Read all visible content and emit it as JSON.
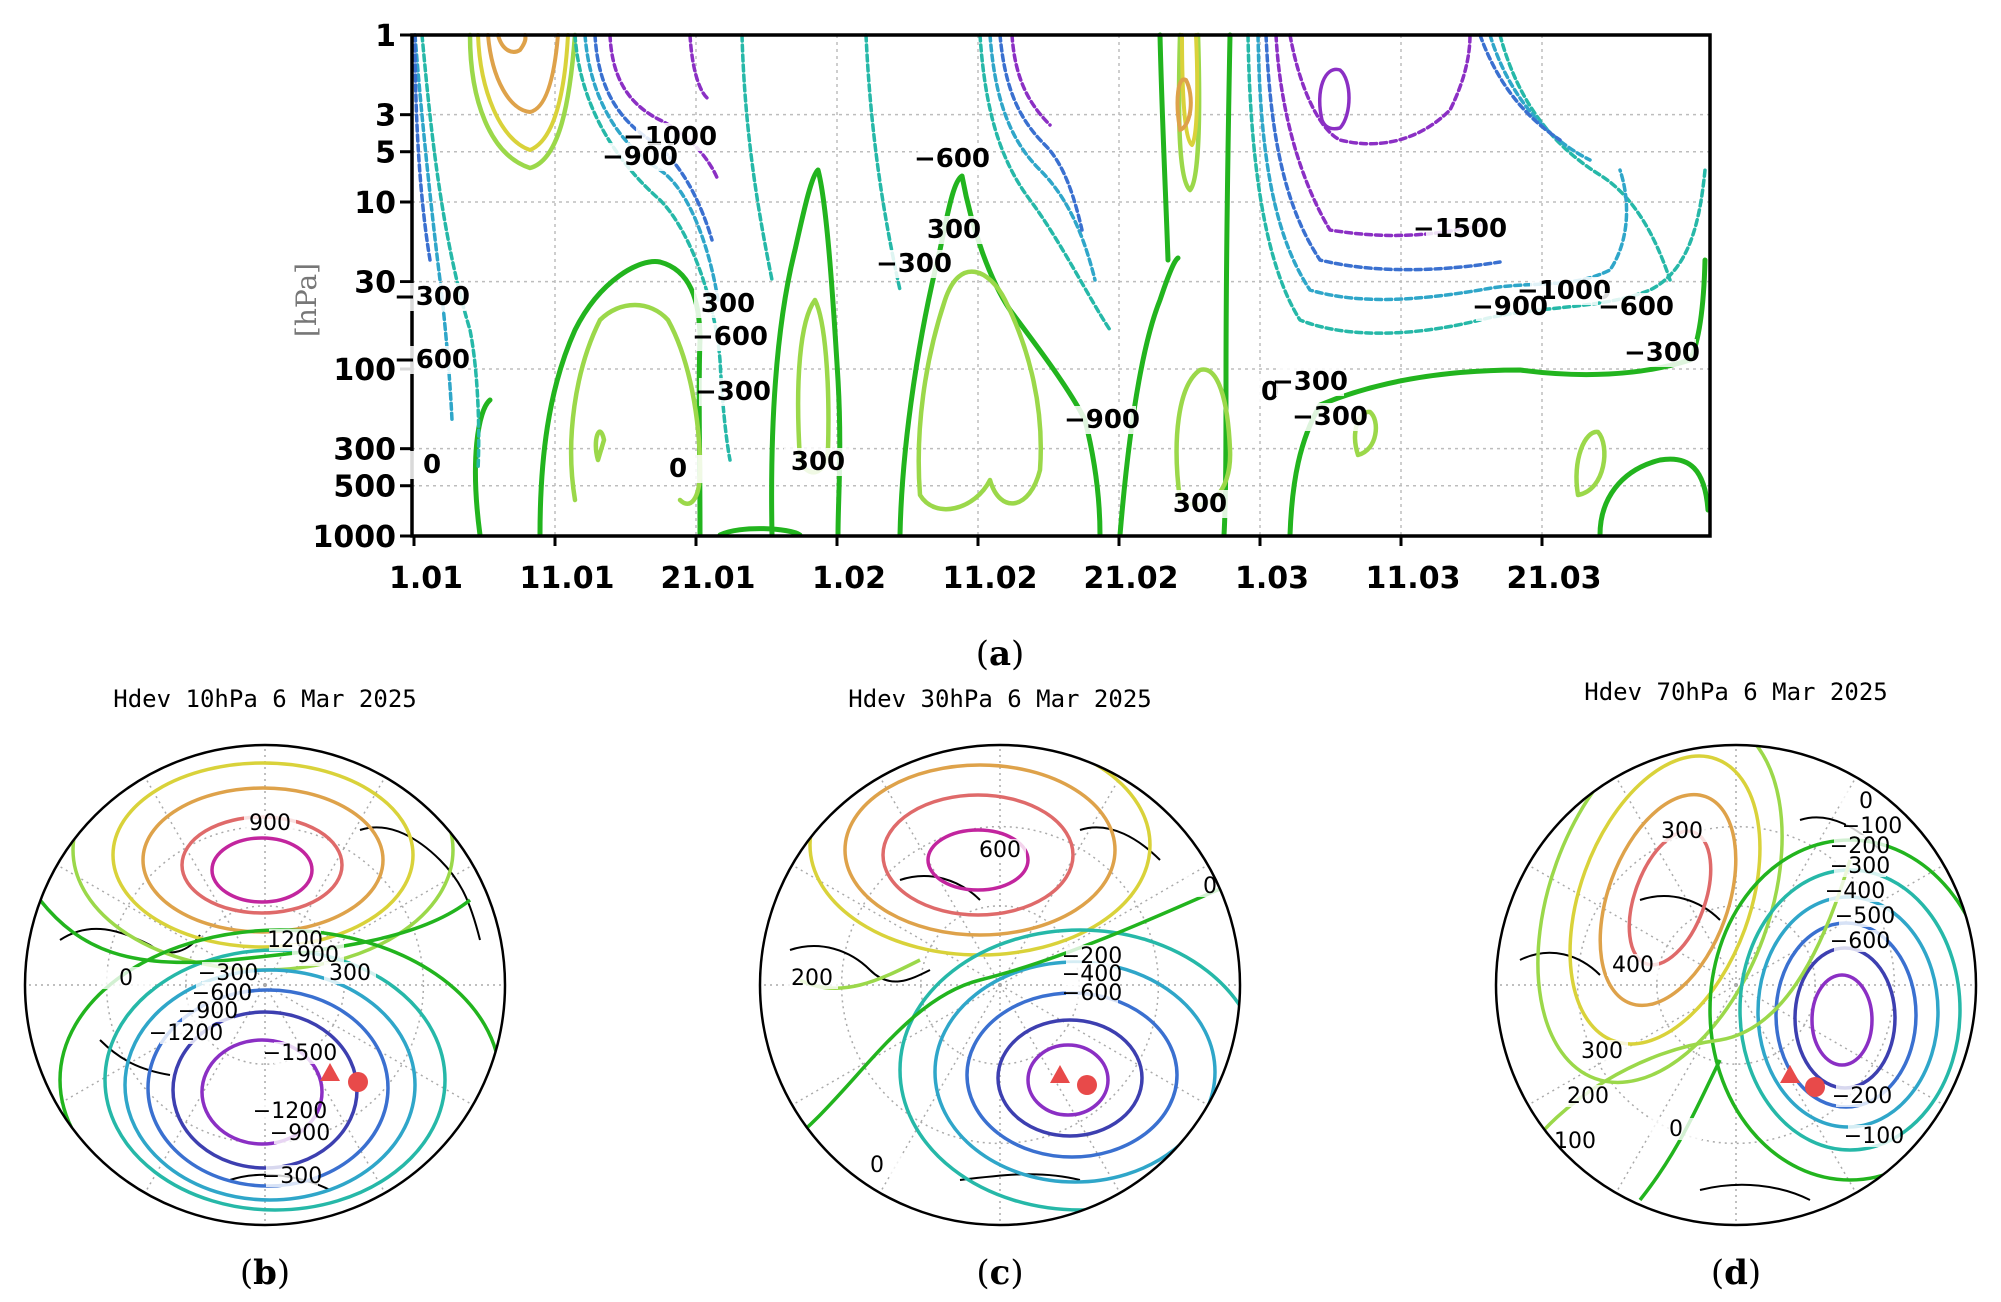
{
  "chart_data": [
    {
      "type": "heatmap",
      "panel": "(a)",
      "ylabel": "[hPa]",
      "y_scale": "log",
      "y_reversed": true,
      "y_ticks": [
        "1",
        "3",
        "5",
        "10",
        "30",
        "100",
        "300",
        "500",
        "1000"
      ],
      "x_ticks": [
        "1.01",
        "11.01",
        "21.01",
        "1.02",
        "11.02",
        "21.02",
        "1.03",
        "11.03",
        "21.03"
      ],
      "contour_interval": 300,
      "contour_labels": [
        "-1000",
        "-900",
        "-300",
        "-600",
        "0",
        "300",
        "-600",
        "-300",
        "0",
        "300",
        "300",
        "-300",
        "-1500",
        "-1000",
        "-900",
        "-600",
        "-300",
        "300",
        "0",
        "-300",
        "-900",
        "-600",
        "-300"
      ],
      "grid": true
    },
    {
      "type": "heatmap",
      "panel": "(b)",
      "title": "Hdev 10hPa 6 Mar 2025",
      "projection": "polar-stereographic",
      "contour_labels": [
        "900",
        "1200",
        "900",
        "300",
        "-300",
        "-600",
        "-900",
        "-1200",
        "-1500",
        "-1200",
        "-900",
        "-300",
        "0"
      ]
    },
    {
      "type": "heatmap",
      "panel": "(c)",
      "title": "Hdev 30hPa 6 Mar 2025",
      "projection": "polar-stereographic",
      "contour_labels": [
        "600",
        "0",
        "200",
        "-200",
        "-400",
        "-600",
        "0"
      ]
    },
    {
      "type": "heatmap",
      "panel": "(d)",
      "title": "Hdev 70hPa 6 Mar 2025",
      "projection": "polar-stereographic",
      "contour_labels": [
        "300",
        "0",
        "-100",
        "-200",
        "-300",
        "-400",
        "-500",
        "-600",
        "400",
        "300",
        "200",
        "-200",
        "100",
        "0",
        "-100"
      ]
    }
  ],
  "captions": {
    "a": "a",
    "b": "b",
    "c": "c",
    "d": "d"
  },
  "colors": {
    "pos_300": "#9bd84a",
    "zero": "#22b41e",
    "pos_600": "#d9d23a",
    "pos_900": "#dea24a",
    "pos_1200": "#df6a6a",
    "pos_1500": "#c2259e",
    "neg_300": "#26b8a8",
    "neg_600": "#2fa6c9",
    "neg_900": "#3a70d0",
    "neg_1200": "#3d3fb0",
    "neg_1500": "#8b2fc4",
    "neg_1800": "#6a1ea0"
  }
}
